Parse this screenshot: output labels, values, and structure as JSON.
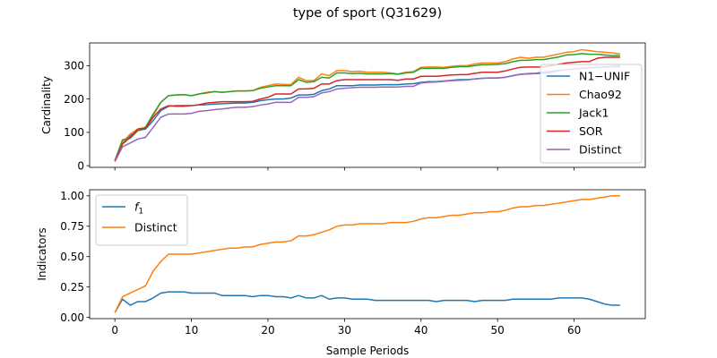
{
  "figure": {
    "title": "type of sport (Q31629)"
  },
  "chart_data": [
    {
      "type": "line",
      "ylabel": "Cardinality",
      "xlabel": "",
      "xlim": [
        -3.3,
        69.3
      ],
      "ylim": [
        -5,
        368
      ],
      "xticks": [
        0,
        10,
        20,
        30,
        40,
        50,
        60
      ],
      "xtick_labels": [
        "",
        "",
        "",
        "",
        "",
        "",
        ""
      ],
      "yticks": [
        0,
        100,
        200,
        300
      ],
      "ytick_labels": [
        "0",
        "100",
        "200",
        "300"
      ],
      "grid": false,
      "legend_position": "right",
      "x": [
        0,
        1,
        2,
        3,
        4,
        5,
        6,
        7,
        8,
        9,
        10,
        11,
        12,
        13,
        14,
        15,
        16,
        17,
        18,
        19,
        20,
        21,
        22,
        23,
        24,
        25,
        26,
        27,
        28,
        29,
        30,
        31,
        32,
        33,
        34,
        35,
        36,
        37,
        38,
        39,
        40,
        41,
        42,
        43,
        44,
        45,
        46,
        47,
        48,
        49,
        50,
        51,
        52,
        53,
        54,
        55,
        56,
        57,
        58,
        59,
        60,
        61,
        62,
        63,
        64,
        65,
        66
      ],
      "series": [
        {
          "name": "N1−UNIF",
          "color": "#1f77b4",
          "values": [
            15,
            67,
            90,
            105,
            110,
            135,
            165,
            178,
            180,
            180,
            180,
            182,
            183,
            185,
            186,
            187,
            188,
            188,
            190,
            195,
            198,
            200,
            200,
            203,
            212,
            212,
            214,
            225,
            230,
            240,
            240,
            240,
            242,
            242,
            242,
            243,
            243,
            243,
            245,
            246,
            250,
            252,
            252,
            254,
            256,
            258,
            258,
            260,
            262,
            263,
            263,
            265,
            270,
            274,
            276,
            277,
            280,
            283,
            286,
            288,
            290,
            292,
            294,
            295,
            296,
            297,
            297
          ]
        },
        {
          "name": "Chao92",
          "color": "#ff7f0e",
          "values": [
            15,
            70,
            95,
            110,
            115,
            150,
            190,
            210,
            212,
            213,
            210,
            215,
            220,
            222,
            220,
            222,
            224,
            224,
            225,
            235,
            240,
            245,
            244,
            243,
            265,
            255,
            255,
            275,
            270,
            285,
            285,
            282,
            283,
            280,
            280,
            280,
            278,
            275,
            280,
            282,
            295,
            296,
            296,
            295,
            298,
            300,
            300,
            305,
            308,
            308,
            308,
            312,
            320,
            325,
            322,
            325,
            325,
            330,
            335,
            340,
            342,
            348,
            345,
            342,
            340,
            338,
            335
          ]
        },
        {
          "name": "Jack1",
          "color": "#2ca02c",
          "values": [
            15,
            78,
            82,
            105,
            115,
            155,
            190,
            210,
            212,
            213,
            210,
            215,
            218,
            222,
            220,
            222,
            224,
            224,
            225,
            232,
            236,
            240,
            240,
            240,
            258,
            250,
            252,
            265,
            263,
            278,
            278,
            276,
            277,
            275,
            275,
            275,
            276,
            274,
            278,
            280,
            292,
            292,
            292,
            292,
            295,
            297,
            297,
            300,
            303,
            303,
            304,
            306,
            312,
            316,
            316,
            318,
            318,
            322,
            326,
            332,
            333,
            336,
            334,
            334,
            332,
            330,
            330
          ]
        },
        {
          "name": "SOR",
          "color": "#d62728",
          "values": [
            15,
            65,
            85,
            110,
            112,
            145,
            170,
            180,
            178,
            178,
            180,
            183,
            188,
            190,
            192,
            192,
            192,
            192,
            193,
            200,
            205,
            215,
            215,
            215,
            230,
            230,
            232,
            245,
            245,
            255,
            258,
            258,
            258,
            258,
            258,
            258,
            258,
            256,
            260,
            260,
            268,
            268,
            268,
            270,
            272,
            273,
            273,
            277,
            280,
            280,
            280,
            284,
            290,
            295,
            296,
            296,
            296,
            300,
            304,
            308,
            310,
            312,
            312,
            322,
            325,
            325,
            325
          ]
        },
        {
          "name": "Distinct",
          "color": "#9467bd",
          "values": [
            12,
            57,
            68,
            80,
            85,
            115,
            145,
            155,
            155,
            155,
            157,
            163,
            165,
            168,
            170,
            173,
            175,
            175,
            177,
            182,
            185,
            190,
            190,
            190,
            205,
            205,
            207,
            218,
            222,
            230,
            232,
            234,
            235,
            235,
            235,
            236,
            236,
            236,
            238,
            238,
            248,
            250,
            251,
            253,
            255,
            256,
            257,
            260,
            262,
            263,
            263,
            265,
            270,
            274,
            275,
            276,
            277,
            280,
            284,
            288,
            290,
            292,
            293,
            295,
            297,
            298,
            300
          ]
        }
      ]
    },
    {
      "type": "line",
      "ylabel": "Indicators",
      "xlabel": "Sample Periods",
      "xlim": [
        -3.3,
        69.3
      ],
      "ylim": [
        -0.01,
        1.05
      ],
      "xticks": [
        0,
        10,
        20,
        30,
        40,
        50,
        60
      ],
      "xtick_labels": [
        "0",
        "10",
        "20",
        "30",
        "40",
        "50",
        "60"
      ],
      "yticks": [
        0,
        0.25,
        0.5,
        0.75,
        1.0
      ],
      "ytick_labels": [
        "0.00",
        "0.25",
        "0.50",
        "0.75",
        "1.00"
      ],
      "grid": false,
      "legend_position": "upper left",
      "x": [
        0,
        1,
        2,
        3,
        4,
        5,
        6,
        7,
        8,
        9,
        10,
        11,
        12,
        13,
        14,
        15,
        16,
        17,
        18,
        19,
        20,
        21,
        22,
        23,
        24,
        25,
        26,
        27,
        28,
        29,
        30,
        31,
        32,
        33,
        34,
        35,
        36,
        37,
        38,
        39,
        40,
        41,
        42,
        43,
        44,
        45,
        46,
        47,
        48,
        49,
        50,
        51,
        52,
        53,
        54,
        55,
        56,
        57,
        58,
        59,
        60,
        61,
        62,
        63,
        64,
        65,
        66
      ],
      "series": [
        {
          "name": "f1",
          "name_main": "f",
          "name_sub": "1",
          "color": "#1f77b4",
          "values": [
            0.04,
            0.15,
            0.1,
            0.13,
            0.13,
            0.16,
            0.2,
            0.21,
            0.21,
            0.21,
            0.2,
            0.2,
            0.2,
            0.2,
            0.18,
            0.18,
            0.18,
            0.18,
            0.17,
            0.18,
            0.18,
            0.17,
            0.17,
            0.16,
            0.18,
            0.16,
            0.16,
            0.18,
            0.15,
            0.16,
            0.16,
            0.15,
            0.15,
            0.15,
            0.14,
            0.14,
            0.14,
            0.14,
            0.14,
            0.14,
            0.14,
            0.14,
            0.13,
            0.14,
            0.14,
            0.14,
            0.14,
            0.13,
            0.14,
            0.14,
            0.14,
            0.14,
            0.15,
            0.15,
            0.15,
            0.15,
            0.15,
            0.15,
            0.16,
            0.16,
            0.16,
            0.16,
            0.15,
            0.13,
            0.11,
            0.1,
            0.1
          ]
        },
        {
          "name": "Distinct",
          "color": "#ff7f0e",
          "values": [
            0.04,
            0.17,
            0.2,
            0.23,
            0.26,
            0.38,
            0.46,
            0.52,
            0.52,
            0.52,
            0.52,
            0.53,
            0.54,
            0.55,
            0.56,
            0.57,
            0.57,
            0.58,
            0.58,
            0.6,
            0.61,
            0.62,
            0.62,
            0.63,
            0.67,
            0.67,
            0.68,
            0.7,
            0.72,
            0.75,
            0.76,
            0.76,
            0.77,
            0.77,
            0.77,
            0.77,
            0.78,
            0.78,
            0.78,
            0.79,
            0.81,
            0.82,
            0.82,
            0.83,
            0.84,
            0.84,
            0.85,
            0.86,
            0.86,
            0.87,
            0.87,
            0.88,
            0.9,
            0.91,
            0.91,
            0.92,
            0.92,
            0.93,
            0.94,
            0.95,
            0.96,
            0.97,
            0.97,
            0.98,
            0.99,
            1.0,
            1.0
          ]
        }
      ]
    }
  ]
}
